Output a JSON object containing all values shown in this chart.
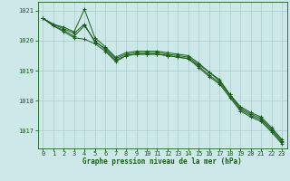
{
  "xlabel": "Graphe pression niveau de la mer (hPa)",
  "background_color": "#cce8e8",
  "grid_color": "#aacccc",
  "line_color": "#1a5e1a",
  "xlim": [
    -0.5,
    23.5
  ],
  "ylim": [
    1016.4,
    1021.3
  ],
  "yticks": [
    1017,
    1018,
    1019,
    1020,
    1021
  ],
  "xticks": [
    0,
    1,
    2,
    3,
    4,
    5,
    6,
    7,
    8,
    9,
    10,
    11,
    12,
    13,
    14,
    15,
    16,
    17,
    18,
    19,
    20,
    21,
    22,
    23
  ],
  "series": [
    [
      1020.75,
      1020.55,
      1020.4,
      1020.25,
      1020.55,
      1019.95,
      1019.75,
      1019.4,
      1019.55,
      1019.6,
      1019.6,
      1019.6,
      1019.55,
      1019.5,
      1019.45,
      1019.2,
      1018.95,
      1018.65,
      1018.2,
      1017.75,
      1017.55,
      1017.4,
      1017.05,
      1016.65
    ],
    [
      1020.75,
      1020.5,
      1020.35,
      1020.15,
      1020.5,
      1020.0,
      1019.7,
      1019.35,
      1019.5,
      1019.55,
      1019.55,
      1019.55,
      1019.5,
      1019.45,
      1019.4,
      1019.15,
      1018.85,
      1018.6,
      1018.15,
      1017.7,
      1017.5,
      1017.35,
      1017.0,
      1016.6
    ],
    [
      1020.75,
      1020.5,
      1020.3,
      1020.1,
      1020.05,
      1019.9,
      1019.65,
      1019.3,
      1019.5,
      1019.55,
      1019.55,
      1019.55,
      1019.5,
      1019.45,
      1019.4,
      1019.1,
      1018.8,
      1018.55,
      1018.1,
      1017.65,
      1017.45,
      1017.3,
      1016.95,
      1016.55
    ],
    [
      1020.75,
      1020.55,
      1020.45,
      1020.3,
      1021.05,
      1020.1,
      1019.8,
      1019.45,
      1019.6,
      1019.65,
      1019.65,
      1019.65,
      1019.6,
      1019.55,
      1019.5,
      1019.25,
      1018.95,
      1018.7,
      1018.2,
      1017.8,
      1017.6,
      1017.45,
      1017.1,
      1016.7
    ]
  ]
}
